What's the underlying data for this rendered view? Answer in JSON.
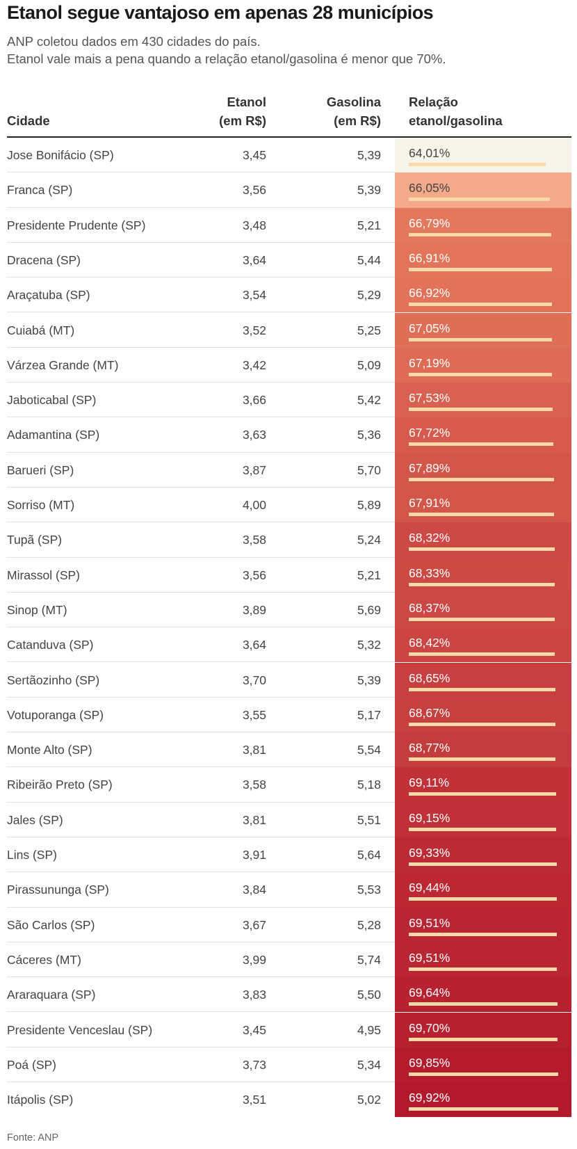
{
  "title": "Etanol segue vantajoso em apenas 28 municípios",
  "subtitle_line1": "ANP coletou dados em 430 cidades do país.",
  "subtitle_line2": "Etanol vale mais a pena quando a relação etanol/gasolina é menor que 70%.",
  "headers": {
    "city": "Cidade",
    "etanol_line1": "Etanol",
    "etanol_line2": "(em R$)",
    "gasolina_line1": "Gasolina",
    "gasolina_line2": "(em R$)",
    "ratio_line1": "Relação",
    "ratio_line2": "etanol/gasolina"
  },
  "source": "Fonte: ANP",
  "colors": {
    "lightest": "#f7f4e9",
    "light": "#f3a98a",
    "mid": "#e4775c",
    "darkest": "#b3192c",
    "bar": "#fbd9a9"
  },
  "chart_data": {
    "type": "table",
    "columns": [
      "Cidade",
      "Etanol (em R$)",
      "Gasolina (em R$)",
      "Relação etanol/gasolina"
    ],
    "rows": [
      {
        "cidade": "Jose Bonifácio (SP)",
        "etanol": "3,45",
        "gasolina": "5,39",
        "relacao": "64,01%",
        "ratio": 64.01
      },
      {
        "cidade": "Franca (SP)",
        "etanol": "3,56",
        "gasolina": "5,39",
        "relacao": "66,05%",
        "ratio": 66.05
      },
      {
        "cidade": "Presidente Prudente (SP)",
        "etanol": "3,48",
        "gasolina": "5,21",
        "relacao": "66,79%",
        "ratio": 66.79
      },
      {
        "cidade": "Dracena (SP)",
        "etanol": "3,64",
        "gasolina": "5,44",
        "relacao": "66,91%",
        "ratio": 66.91
      },
      {
        "cidade": "Araçatuba (SP)",
        "etanol": "3,54",
        "gasolina": "5,29",
        "relacao": "66,92%",
        "ratio": 66.92
      },
      {
        "cidade": "Cuiabá (MT)",
        "etanol": "3,52",
        "gasolina": "5,25",
        "relacao": "67,05%",
        "ratio": 67.05
      },
      {
        "cidade": "Várzea Grande (MT)",
        "etanol": "3,42",
        "gasolina": "5,09",
        "relacao": "67,19%",
        "ratio": 67.19
      },
      {
        "cidade": "Jaboticabal (SP)",
        "etanol": "3,66",
        "gasolina": "5,42",
        "relacao": "67,53%",
        "ratio": 67.53
      },
      {
        "cidade": "Adamantina (SP)",
        "etanol": "3,63",
        "gasolina": "5,36",
        "relacao": "67,72%",
        "ratio": 67.72
      },
      {
        "cidade": "Barueri (SP)",
        "etanol": "3,87",
        "gasolina": "5,70",
        "relacao": "67,89%",
        "ratio": 67.89
      },
      {
        "cidade": "Sorriso (MT)",
        "etanol": "4,00",
        "gasolina": "5,89",
        "relacao": "67,91%",
        "ratio": 67.91
      },
      {
        "cidade": "Tupã (SP)",
        "etanol": "3,58",
        "gasolina": "5,24",
        "relacao": "68,32%",
        "ratio": 68.32
      },
      {
        "cidade": "Mirassol (SP)",
        "etanol": "3,56",
        "gasolina": "5,21",
        "relacao": "68,33%",
        "ratio": 68.33
      },
      {
        "cidade": "Sinop (MT)",
        "etanol": "3,89",
        "gasolina": "5,69",
        "relacao": "68,37%",
        "ratio": 68.37
      },
      {
        "cidade": "Catanduva (SP)",
        "etanol": "3,64",
        "gasolina": "5,32",
        "relacao": "68,42%",
        "ratio": 68.42
      },
      {
        "cidade": "Sertãozinho (SP)",
        "etanol": "3,70",
        "gasolina": "5,39",
        "relacao": "68,65%",
        "ratio": 68.65
      },
      {
        "cidade": "Votuporanga (SP)",
        "etanol": "3,55",
        "gasolina": "5,17",
        "relacao": "68,67%",
        "ratio": 68.67
      },
      {
        "cidade": "Monte Alto (SP)",
        "etanol": "3,81",
        "gasolina": "5,54",
        "relacao": "68,77%",
        "ratio": 68.77
      },
      {
        "cidade": "Ribeirão Preto (SP)",
        "etanol": "3,58",
        "gasolina": "5,18",
        "relacao": "69,11%",
        "ratio": 69.11
      },
      {
        "cidade": "Jales (SP)",
        "etanol": "3,81",
        "gasolina": "5,51",
        "relacao": "69,15%",
        "ratio": 69.15
      },
      {
        "cidade": "Lins (SP)",
        "etanol": "3,91",
        "gasolina": "5,64",
        "relacao": "69,33%",
        "ratio": 69.33
      },
      {
        "cidade": "Pirassununga (SP)",
        "etanol": "3,84",
        "gasolina": "5,53",
        "relacao": "69,44%",
        "ratio": 69.44
      },
      {
        "cidade": "São Carlos (SP)",
        "etanol": "3,67",
        "gasolina": "5,28",
        "relacao": "69,51%",
        "ratio": 69.51
      },
      {
        "cidade": "Cáceres (MT)",
        "etanol": "3,99",
        "gasolina": "5,74",
        "relacao": "69,51%",
        "ratio": 69.51
      },
      {
        "cidade": "Araraquara (SP)",
        "etanol": "3,83",
        "gasolina": "5,50",
        "relacao": "69,64%",
        "ratio": 69.64
      },
      {
        "cidade": "Presidente Venceslau (SP)",
        "etanol": "3,45",
        "gasolina": "4,95",
        "relacao": "69,70%",
        "ratio": 69.7
      },
      {
        "cidade": "Poá (SP)",
        "etanol": "3,73",
        "gasolina": "5,34",
        "relacao": "69,85%",
        "ratio": 69.85
      },
      {
        "cidade": "Itápolis (SP)",
        "etanol": "3,51",
        "gasolina": "5,02",
        "relacao": "69,92%",
        "ratio": 69.92
      }
    ]
  }
}
